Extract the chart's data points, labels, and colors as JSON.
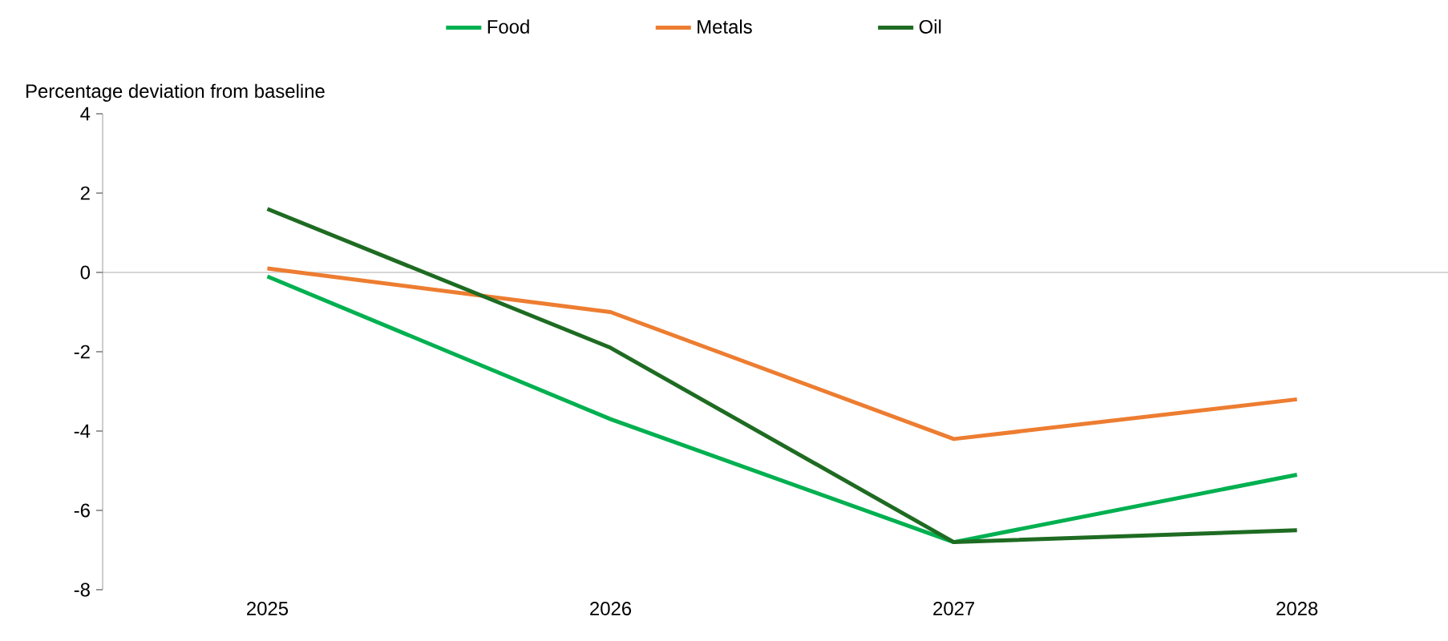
{
  "chart_data": {
    "type": "line",
    "ylabel": "Percentage deviation from baseline",
    "categories": [
      "2025",
      "2026",
      "2027",
      "2028"
    ],
    "series": [
      {
        "name": "Food",
        "color": "#00b050",
        "values": [
          -0.1,
          -3.7,
          -6.8,
          -5.1
        ]
      },
      {
        "name": "Metals",
        "color": "#ed7d31",
        "values": [
          0.1,
          -1.0,
          -4.2,
          -3.2
        ]
      },
      {
        "name": "Oil",
        "color": "#1e6b22",
        "values": [
          1.6,
          -1.9,
          -6.8,
          -6.5
        ]
      }
    ],
    "ylim": [
      -8,
      4
    ],
    "yticks": [
      -8,
      -6,
      -4,
      -2,
      0,
      2,
      4
    ],
    "legend": "top",
    "ref_lines": [
      {
        "axis": "y",
        "value": 0,
        "color": "#999999"
      }
    ],
    "marker": "none",
    "line_style": "solid"
  }
}
